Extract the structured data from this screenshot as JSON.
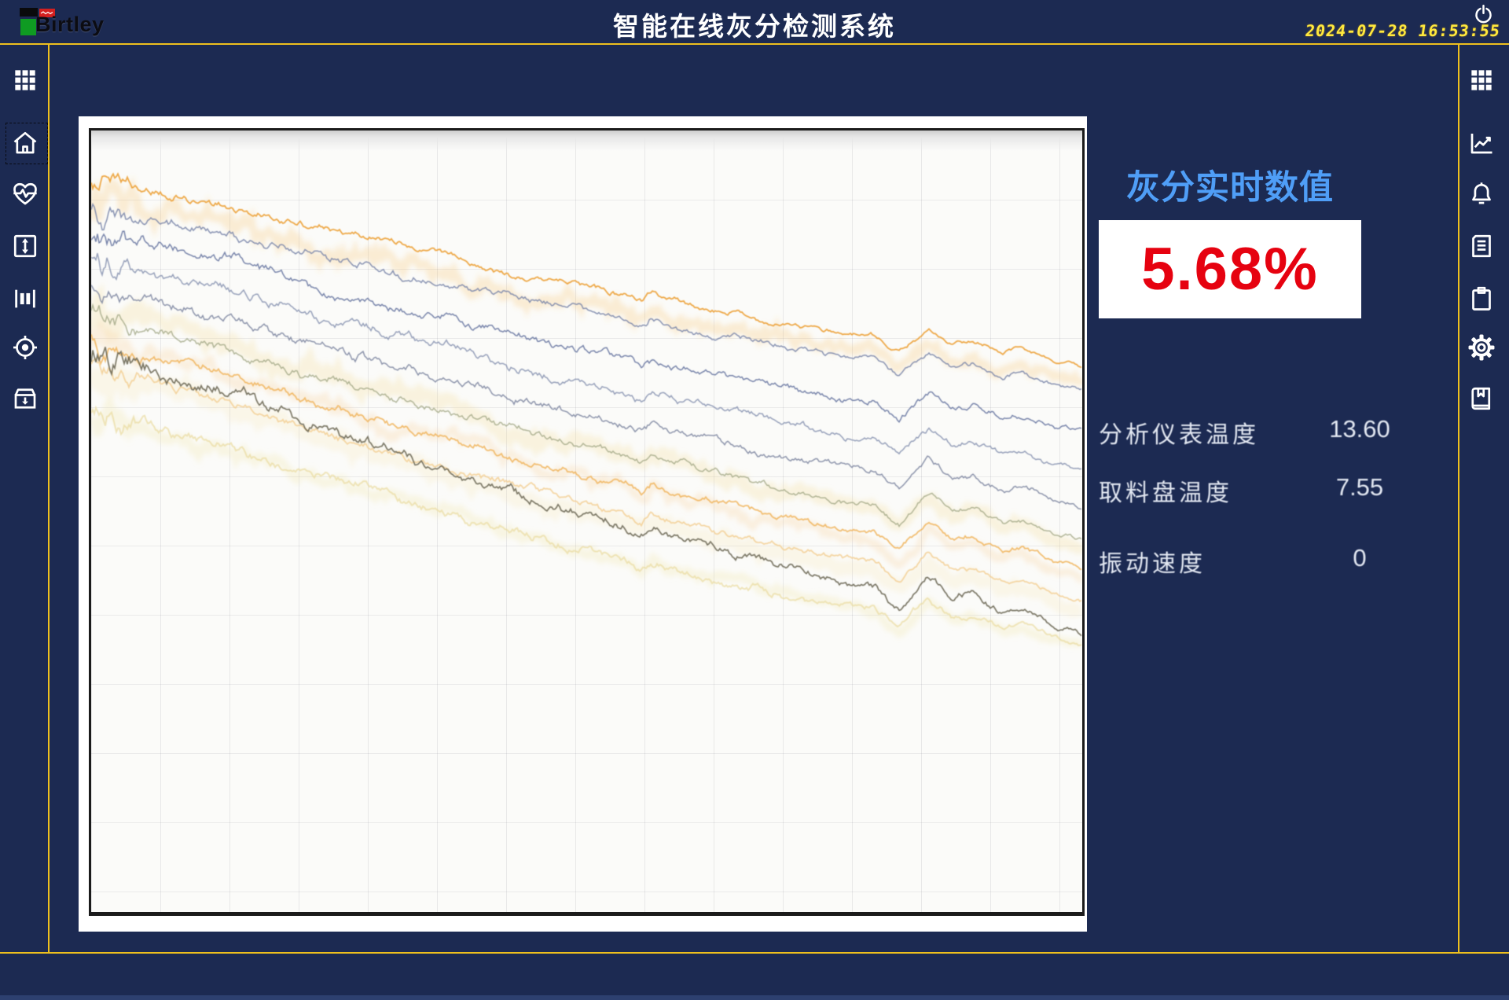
{
  "header": {
    "brand": "Birtley",
    "title": "智能在线灰分检测系统",
    "datetime": "2024-07-28 16:53:55"
  },
  "sidebar_left": {
    "selected_index": 1,
    "items": [
      {
        "icon": "apps-grid-icon"
      },
      {
        "icon": "home-icon"
      },
      {
        "icon": "heartbeat-icon"
      },
      {
        "icon": "vertical-range-icon"
      },
      {
        "icon": "columns-icon"
      },
      {
        "icon": "target-icon"
      },
      {
        "icon": "archive-download-icon"
      }
    ]
  },
  "sidebar_right": {
    "items": [
      {
        "icon": "apps-grid-icon"
      },
      {
        "icon": "trend-chart-icon"
      },
      {
        "icon": "bell-icon"
      },
      {
        "icon": "report-icon"
      },
      {
        "icon": "clipboard-icon"
      },
      {
        "icon": "settings-gear-icon"
      },
      {
        "icon": "logbook-icon"
      }
    ]
  },
  "panel": {
    "realtime_title": "灰分实时数值",
    "ash_value": "5.68%",
    "readings": [
      {
        "label": "分析仪表温度",
        "value": "13.60"
      },
      {
        "label": "取料盘温度",
        "value": "7.55"
      },
      {
        "label": "振动速度",
        "value": "0"
      }
    ]
  },
  "colors": {
    "background": "#1c2a52",
    "accent_yellow": "#eec01e",
    "datetime_yellow": "#ffe93d",
    "title_blue": "#4f9ef7",
    "value_red": "#e60210",
    "chart_bg": "#fbfbf9"
  },
  "chart_data": {
    "type": "line",
    "title": "",
    "xlabel": "",
    "ylabel": "",
    "axes_labeled": false,
    "grid": true,
    "grid_spacing_px": 88,
    "x_range_pct": [
      0,
      100
    ],
    "y_range_pct": [
      0,
      100
    ],
    "description": "Unlabeled multi-trace sensor signal plot: ~15 noisy traces drift downward from upper-left to mid-right; transient notch near x=55%, sharp dip-rebound disturbance near x=82%, wavy tail to right edge.",
    "base_curve": [
      [
        0,
        0
      ],
      [
        4,
        3
      ],
      [
        8,
        7
      ],
      [
        12,
        12
      ],
      [
        16,
        17
      ],
      [
        20,
        22
      ],
      [
        24,
        27
      ],
      [
        28,
        32
      ],
      [
        32,
        37
      ],
      [
        36,
        42
      ],
      [
        40,
        47
      ],
      [
        44,
        52
      ],
      [
        48,
        56
      ],
      [
        52,
        60
      ],
      [
        54,
        62
      ],
      [
        55.5,
        66
      ],
      [
        56.5,
        62
      ],
      [
        60,
        67
      ],
      [
        64,
        71
      ],
      [
        68,
        75
      ],
      [
        72,
        79
      ],
      [
        76,
        83
      ],
      [
        79,
        84
      ],
      [
        81.5,
        93
      ],
      [
        84.5,
        80
      ],
      [
        87,
        88
      ],
      [
        89,
        86
      ],
      [
        92,
        93
      ],
      [
        94,
        91
      ],
      [
        97,
        97
      ],
      [
        100,
        100
      ]
    ],
    "series": [
      {
        "name": "band-orange",
        "color": "#f5b44a",
        "start_pct": 9,
        "end_pct": 32,
        "width": 9,
        "opacity": 0.22,
        "amplitude": 16,
        "blur": 2,
        "seed": 11
      },
      {
        "name": "band-yellow",
        "color": "#f2d68c",
        "start_pct": 23,
        "end_pct": 53,
        "width": 13,
        "opacity": 0.25,
        "amplitude": 12,
        "blur": 2,
        "seed": 22
      },
      {
        "name": "band-cream",
        "color": "#f4e3ae",
        "start_pct": 31,
        "end_pct": 61,
        "width": 15,
        "opacity": 0.22,
        "amplitude": 10,
        "blur": 2,
        "seed": 33
      },
      {
        "name": "band-peach",
        "color": "#f6c887",
        "start_pct": 27,
        "end_pct": 57,
        "width": 8,
        "opacity": 0.25,
        "amplitude": 12,
        "blur": 2,
        "seed": 44
      },
      {
        "name": "band-yellow-2",
        "color": "#efe2a0",
        "start_pct": 37,
        "end_pct": 66,
        "width": 10,
        "opacity": 0.25,
        "amplitude": 9,
        "blur": 2,
        "seed": 55
      },
      {
        "name": "trace-orange-top",
        "color": "#eda43e",
        "start_pct": 6.5,
        "end_pct": 30,
        "width": 1.8,
        "opacity": 0.95,
        "amplitude": 6,
        "blur": 1,
        "seed": 1
      },
      {
        "name": "trace-blue-1",
        "color": "#7b87ab",
        "start_pct": 10,
        "end_pct": 33,
        "width": 1.5,
        "opacity": 0.9,
        "amplitude": 7,
        "blur": 1,
        "seed": 2
      },
      {
        "name": "trace-blue-2",
        "color": "#6a78a2",
        "start_pct": 13.5,
        "end_pct": 38.5,
        "width": 1.5,
        "opacity": 0.9,
        "amplitude": 8,
        "blur": 1,
        "seed": 3
      },
      {
        "name": "trace-blue-3",
        "color": "#8590af",
        "start_pct": 17,
        "end_pct": 43.5,
        "width": 1.5,
        "opacity": 0.85,
        "amplitude": 8,
        "blur": 1,
        "seed": 4
      },
      {
        "name": "trace-slate",
        "color": "#7a829d",
        "start_pct": 20.5,
        "end_pct": 48,
        "width": 1.5,
        "opacity": 0.85,
        "amplitude": 8,
        "blur": 1,
        "seed": 5
      },
      {
        "name": "trace-olive",
        "color": "#9aa07c",
        "start_pct": 24,
        "end_pct": 52.5,
        "width": 1.5,
        "opacity": 0.75,
        "amplitude": 7,
        "blur": 1,
        "seed": 6
      },
      {
        "name": "trace-orange-mid",
        "color": "#f0b45c",
        "start_pct": 27.5,
        "end_pct": 56,
        "width": 1.8,
        "opacity": 0.85,
        "amplitude": 7,
        "blur": 1,
        "seed": 7
      },
      {
        "name": "trace-peach",
        "color": "#f3cd90",
        "start_pct": 31,
        "end_pct": 60,
        "width": 1.8,
        "opacity": 0.8,
        "amplitude": 7,
        "blur": 1,
        "seed": 8
      },
      {
        "name": "trace-dark",
        "color": "#6e6a58",
        "start_pct": 29,
        "end_pct": 64,
        "width": 1.7,
        "opacity": 0.9,
        "amplitude": 9,
        "blur": 1,
        "seed": 9
      },
      {
        "name": "trace-pale-yellow",
        "color": "#e9dc9f",
        "start_pct": 36.5,
        "end_pct": 66,
        "width": 2,
        "opacity": 0.7,
        "amplitude": 8,
        "blur": 1,
        "seed": 10
      }
    ]
  }
}
